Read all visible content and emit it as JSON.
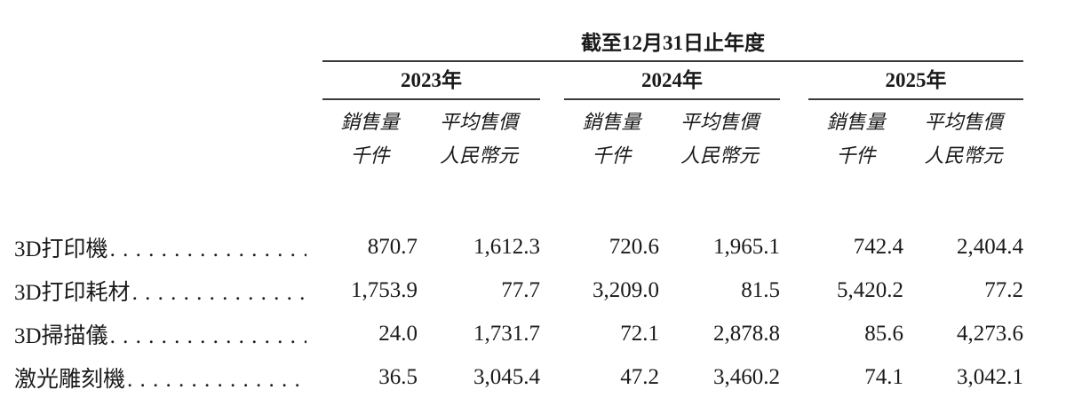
{
  "title": "截至12月31日止年度",
  "columns": {
    "years": [
      "2023年",
      "2024年",
      "2025年"
    ],
    "volume_header": "銷售量",
    "volume_unit": "千件",
    "price_header": "平均售價",
    "price_unit": "人民幣元"
  },
  "rows": [
    {
      "label": "3D打印機",
      "values": [
        "870.7",
        "1,612.3",
        "720.6",
        "1,965.1",
        "742.4",
        "2,404.4"
      ]
    },
    {
      "label": "3D打印耗材",
      "values": [
        "1,753.9",
        "77.7",
        "3,209.0",
        "81.5",
        "5,420.2",
        "77.2"
      ]
    },
    {
      "label": "3D掃描儀",
      "values": [
        "24.0",
        "1,731.7",
        "72.1",
        "2,878.8",
        "85.6",
        "4,273.6"
      ]
    },
    {
      "label": "激光雕刻機",
      "values": [
        "36.5",
        "3,045.4",
        "47.2",
        "3,460.2",
        "74.1",
        "3,042.1"
      ]
    }
  ],
  "colors": {
    "background": "#ffffff",
    "text": "#1a1a1a",
    "rule": "#3a3a3a"
  }
}
